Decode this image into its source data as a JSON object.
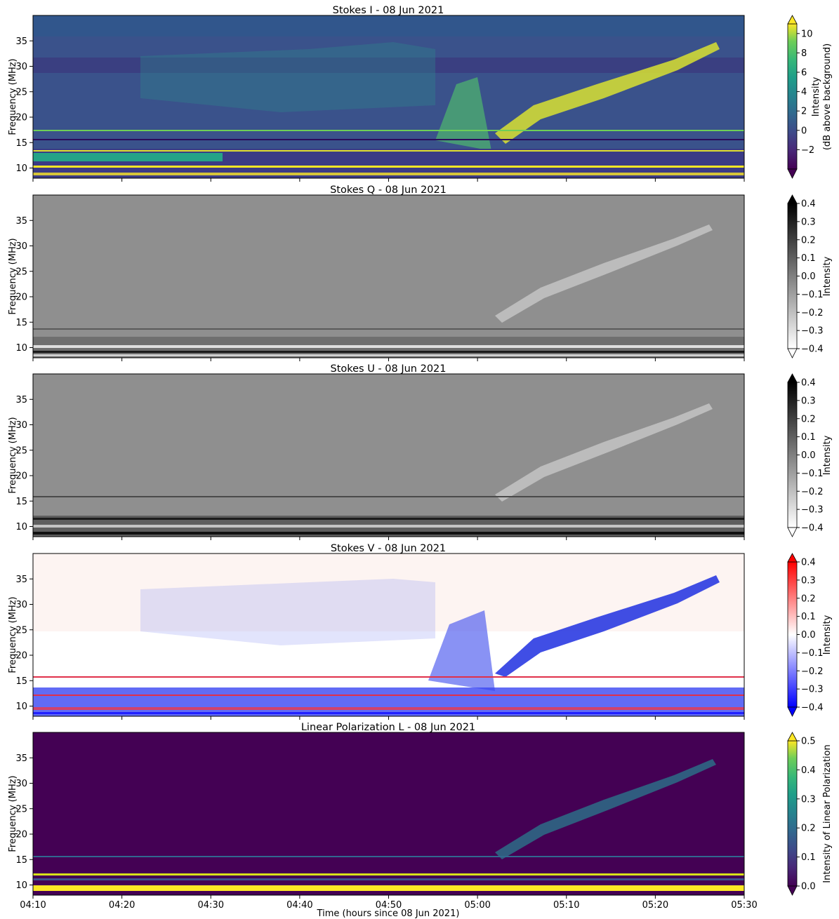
{
  "chart_data": [
    {
      "type": "heatmap",
      "title": "Stokes I - 08 Jun 2021",
      "ylabel": "Frequency (MHz)",
      "xlim": [
        "04:10",
        "05:30"
      ],
      "ylim": [
        8,
        40
      ],
      "yticks": [
        "10",
        "15",
        "20",
        "25",
        "30",
        "35"
      ],
      "xticks": [
        "04:10",
        "04:20",
        "04:30",
        "04:40",
        "04:50",
        "05:00",
        "05:10",
        "05:20",
        "05:30"
      ],
      "xtick_labels_shown": false,
      "colormap": "viridis",
      "background_color": "#3a528b",
      "colorbar": {
        "label_lines": [
          "Intensity",
          "(dB above background)"
        ],
        "range": [
          -4,
          11
        ],
        "ticks": [
          "10",
          "8",
          "6",
          "4",
          "2",
          "0",
          "−2"
        ],
        "extend": "both"
      },
      "features": {
        "drifting_burst": {
          "start": [
            "04:58",
            15
          ],
          "end": [
            "05:27",
            35
          ]
        },
        "low_frequency_rfi_band_mhz": [
          8,
          13
        ]
      }
    },
    {
      "type": "heatmap",
      "title": "Stokes Q - 08 Jun 2021",
      "ylabel": "Frequency (MHz)",
      "xlim": [
        "04:10",
        "05:30"
      ],
      "ylim": [
        8,
        40
      ],
      "yticks": [
        "10",
        "15",
        "20",
        "25",
        "30",
        "35"
      ],
      "xtick_labels_shown": false,
      "colormap": "gray_r",
      "background_color": "#8f8f8f",
      "colorbar": {
        "label_lines": [
          "Intensity"
        ],
        "range": [
          -0.4,
          0.4
        ],
        "ticks": [
          "0.4",
          "0.3",
          "0.2",
          "0.1",
          "0.0",
          "−0.1",
          "−0.2",
          "−0.3",
          "−0.4"
        ],
        "extend": "both"
      }
    },
    {
      "type": "heatmap",
      "title": "Stokes U - 08 Jun 2021",
      "ylabel": "Frequency (MHz)",
      "xlim": [
        "04:10",
        "05:30"
      ],
      "ylim": [
        8,
        40
      ],
      "yticks": [
        "10",
        "15",
        "20",
        "25",
        "30",
        "35"
      ],
      "xtick_labels_shown": false,
      "colormap": "gray_r",
      "background_color": "#8f8f8f",
      "colorbar": {
        "label_lines": [
          "Intensity"
        ],
        "range": [
          -0.4,
          0.4
        ],
        "ticks": [
          "0.4",
          "0.3",
          "0.2",
          "0.1",
          "0.0",
          "−0.1",
          "−0.2",
          "−0.3",
          "−0.4"
        ],
        "extend": "both"
      }
    },
    {
      "type": "heatmap",
      "title": "Stokes V - 08 Jun 2021",
      "ylabel": "Frequency (MHz)",
      "xlim": [
        "04:10",
        "05:30"
      ],
      "ylim": [
        8,
        40
      ],
      "yticks": [
        "10",
        "15",
        "20",
        "25",
        "30",
        "35"
      ],
      "xtick_labels_shown": false,
      "colormap": "bwr",
      "background_color": "#fdf4f2",
      "colorbar": {
        "label_lines": [
          "Intensity"
        ],
        "range": [
          -0.4,
          0.4
        ],
        "ticks": [
          "0.4",
          "0.3",
          "0.2",
          "0.1",
          "0.0",
          "−0.1",
          "−0.2",
          "−0.3",
          "−0.4"
        ],
        "extend": "both"
      }
    },
    {
      "type": "heatmap",
      "title": "Linear Polarization L - 08 Jun 2021",
      "ylabel": "Frequency (MHz)",
      "xlabel": "Time (hours since 08 Jun 2021)",
      "xlim": [
        "04:10",
        "05:30"
      ],
      "ylim": [
        8,
        40
      ],
      "yticks": [
        "10",
        "15",
        "20",
        "25",
        "30",
        "35"
      ],
      "xticks": [
        "04:10",
        "04:20",
        "04:30",
        "04:40",
        "04:50",
        "05:00",
        "05:10",
        "05:20",
        "05:30"
      ],
      "xtick_labels_shown": true,
      "colormap": "viridis",
      "background_color": "#440154",
      "colorbar": {
        "label_lines": [
          "Intensity of Linear Polarization"
        ],
        "range": [
          0.0,
          0.5
        ],
        "ticks": [
          "0.5",
          "0.4",
          "0.3",
          "0.2",
          "0.1",
          "0.0"
        ],
        "extend": "min"
      }
    }
  ]
}
